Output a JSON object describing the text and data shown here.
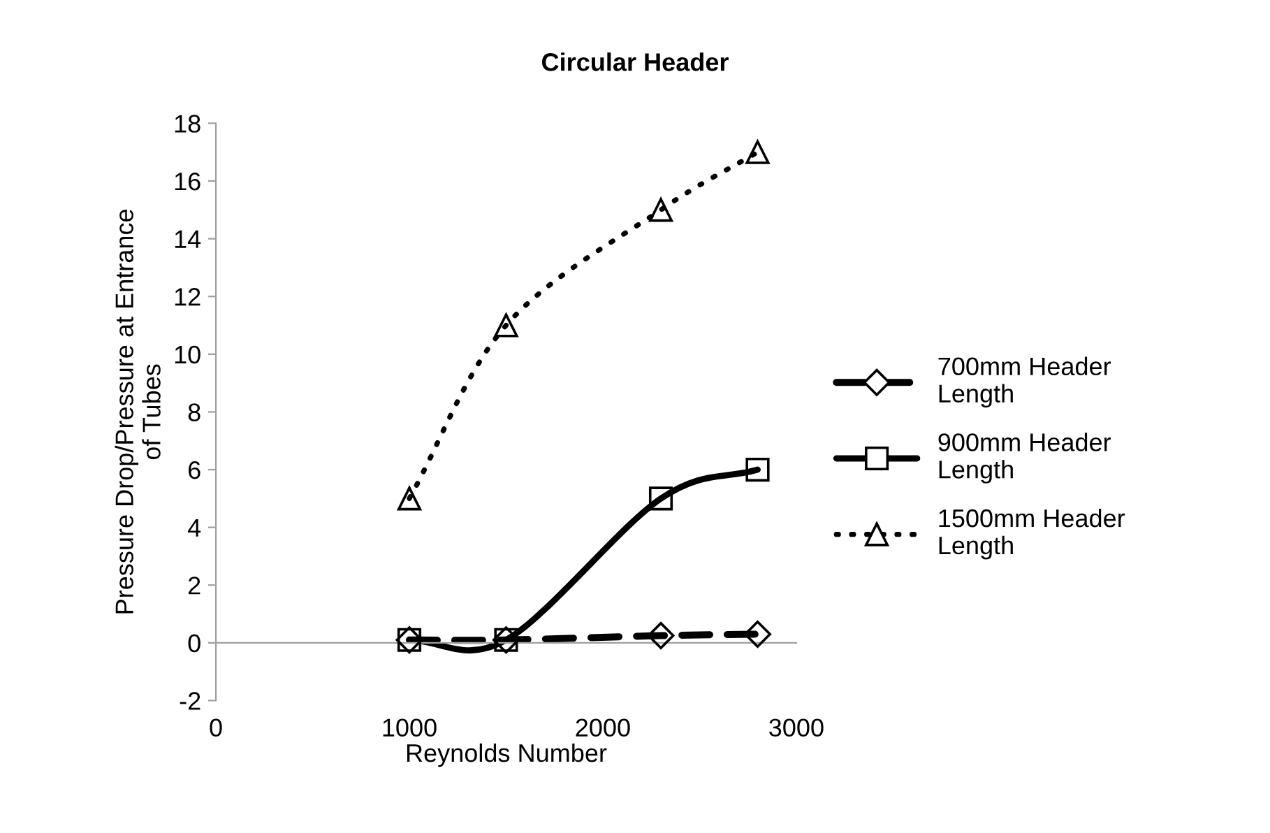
{
  "chart_data": {
    "type": "line",
    "title": "Circular Header",
    "xlabel": "Reynolds Number",
    "ylabel": "Pressure Drop/Pressure at Entrance of Tubes",
    "x": [
      1000,
      1500,
      2300,
      2800
    ],
    "series": [
      {
        "name": "700mm Header Length",
        "color": "#000000",
        "values": [
          0.1,
          0.1,
          0.25,
          0.3
        ],
        "marker": "diamond",
        "line_style": "dashed"
      },
      {
        "name": "900mm Header Length",
        "color": "#000000",
        "values": [
          0.1,
          0.1,
          5,
          6
        ],
        "marker": "square",
        "line_style": "solid"
      },
      {
        "name": "1500mm Header Length",
        "color": "#000000",
        "values": [
          5,
          11,
          15,
          17
        ],
        "marker": "triangle",
        "line_style": "dotted"
      }
    ],
    "xlim": [
      0,
      3000
    ],
    "xticks": [
      0,
      1000,
      2000,
      3000
    ],
    "ylim": [
      -2,
      18
    ],
    "yticks": [
      -2,
      0,
      2,
      4,
      6,
      8,
      10,
      12,
      14,
      16,
      18
    ],
    "legend": "right"
  }
}
